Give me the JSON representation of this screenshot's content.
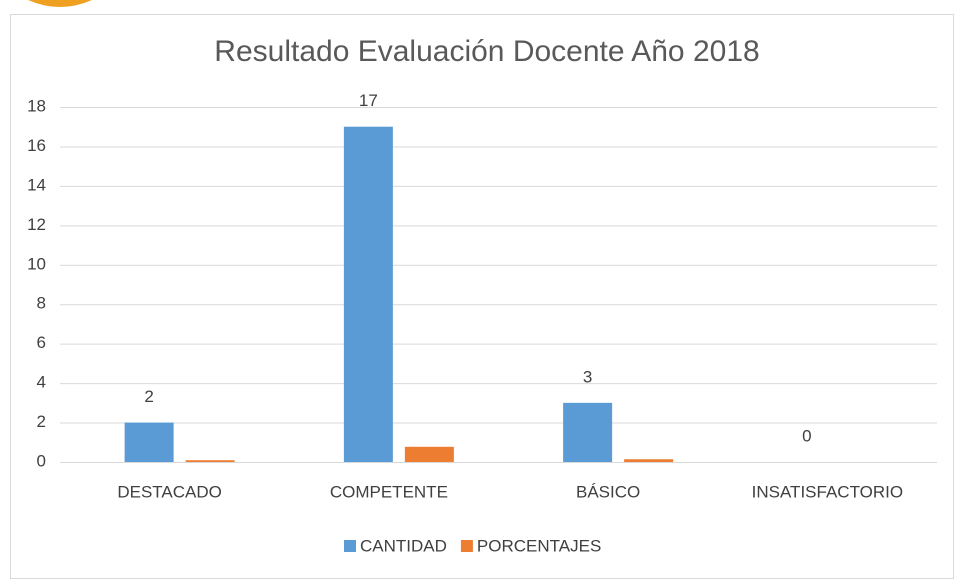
{
  "chart_data": {
    "type": "bar",
    "title": "Resultado Evaluación Docente Año 2018",
    "categories": [
      "DESTACADO",
      "COMPETENTE",
      "BÁSICO",
      "INSATISFACTORIO"
    ],
    "series": [
      {
        "name": "CANTIDAD",
        "color": "#5b9bd5",
        "values": [
          2,
          17,
          3,
          0
        ],
        "show_labels": true
      },
      {
        "name": "PORCENTAJES",
        "color": "#ed7d31",
        "values": [
          0.09,
          0.77,
          0.14,
          0
        ],
        "show_labels": false
      }
    ],
    "ylim": [
      0,
      18
    ],
    "yticks": [
      0,
      2,
      4,
      6,
      8,
      10,
      12,
      14,
      16,
      18
    ],
    "grid": true,
    "legend": "bottom"
  }
}
